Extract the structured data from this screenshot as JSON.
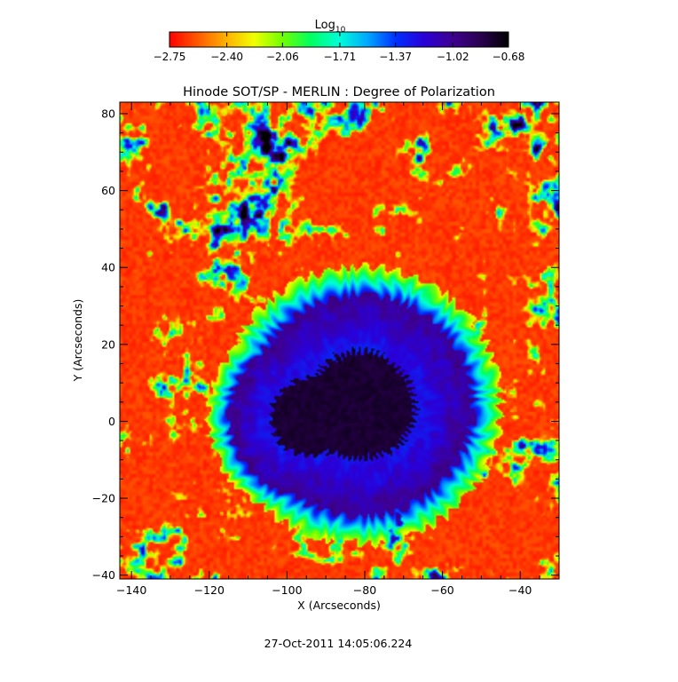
{
  "chart_data": {
    "type": "heatmap",
    "title": "Hinode SOT/SP - MERLIN : Degree of Polarization",
    "xlabel": "X (Arcseconds)",
    "ylabel": "Y (Arcseconds)",
    "xlim": [
      -143,
      -30
    ],
    "ylim": [
      -41,
      83
    ],
    "x_ticks": [
      -140,
      -120,
      -100,
      -80,
      -60,
      -40
    ],
    "x_tick_labels": [
      "−140",
      "−120",
      "−100",
      "−80",
      "−60",
      "−40"
    ],
    "y_ticks": [
      -40,
      -20,
      0,
      20,
      40,
      60,
      80
    ],
    "y_tick_labels": [
      "−40",
      "−20",
      "0",
      "20",
      "40",
      "60",
      "80"
    ],
    "colorbar": {
      "title_main": "Log",
      "title_sub": "10",
      "range": [
        -2.75,
        -0.68
      ],
      "ticks": [
        -2.75,
        -2.4,
        -2.06,
        -1.71,
        -1.37,
        -1.02,
        -0.68
      ],
      "tick_labels": [
        "−2.75",
        "−2.40",
        "−2.06",
        "−1.71",
        "−1.37",
        "−1.02",
        "−0.68"
      ],
      "colors": [
        "#ff0000",
        "#ff5a00",
        "#ffb000",
        "#f0ff00",
        "#70ff00",
        "#00ff60",
        "#00ffd8",
        "#00a8ff",
        "#0030ff",
        "#2a00d8",
        "#3e0090",
        "#2a0050",
        "#000000"
      ]
    },
    "features": {
      "umbra_center": [
        -81,
        4
      ],
      "umbra_radius": 14,
      "secondary_lobe_center": [
        -94,
        1
      ],
      "penumbra_radius": 29,
      "quiet_sun_level": -2.7,
      "umbra_level": -0.75
    }
  },
  "timestamp": "27-Oct-2011 14:05:06.224"
}
